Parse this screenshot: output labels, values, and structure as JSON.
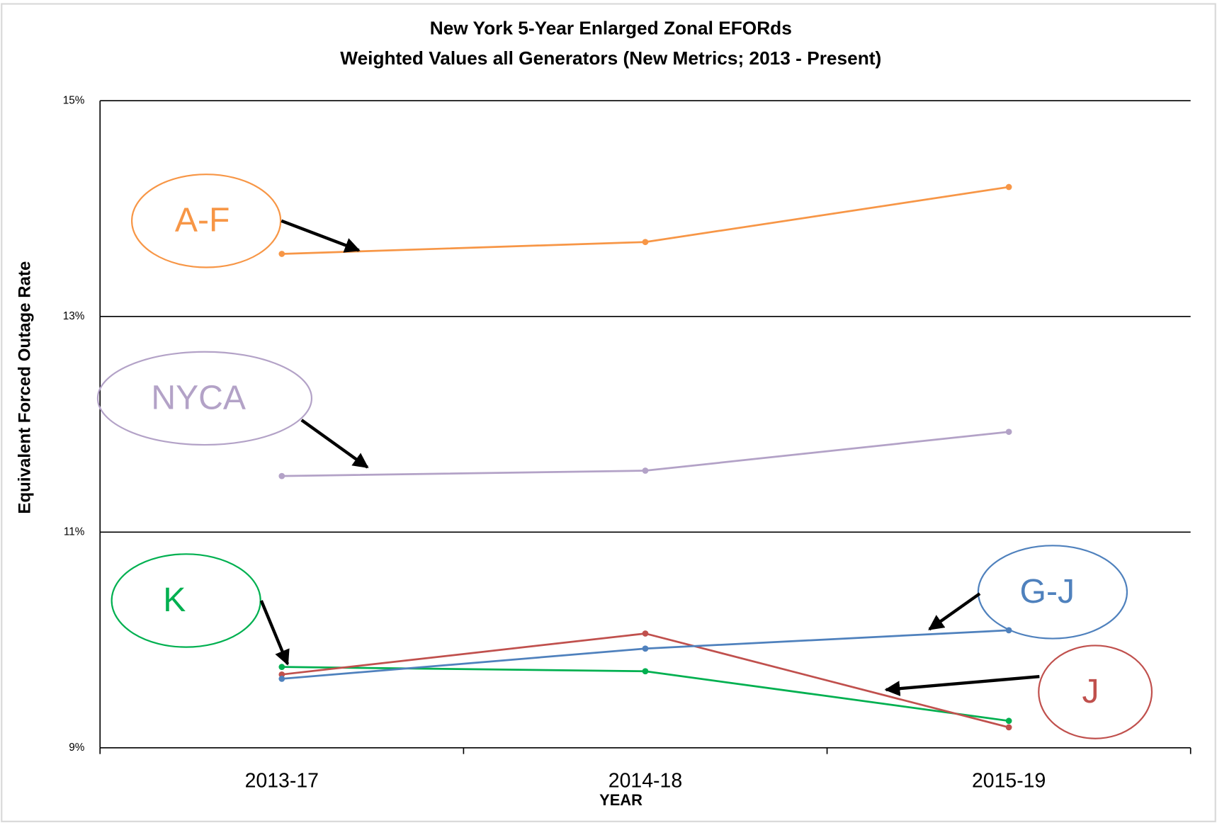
{
  "chart_data": {
    "type": "line",
    "title": "New York 5-Year Enlarged Zonal EFORds",
    "subtitle": "Weighted Values all Generators (New Metrics; 2013 - Present)",
    "y_label": "Equivalent Forced Outage Rate",
    "x_label": "YEAR",
    "categories": [
      "2013-17",
      "2014-18",
      "2015-19"
    ],
    "series": [
      {
        "name": "A-F",
        "color": "#f79646",
        "values": [
          13.58,
          13.69,
          14.2
        ]
      },
      {
        "name": "NYCA",
        "color": "#b3a2c7",
        "values": [
          11.52,
          11.57,
          11.93
        ]
      },
      {
        "name": "K",
        "color": "#00b050",
        "values": [
          9.75,
          9.71,
          9.25
        ]
      },
      {
        "name": "J",
        "color": "#c0504d",
        "values": [
          9.68,
          10.06,
          9.19
        ]
      },
      {
        "name": "G-J",
        "color": "#4f81bd",
        "values": [
          9.64,
          9.92,
          10.09
        ]
      }
    ],
    "ylim": [
      9,
      15
    ],
    "yticks": [
      {
        "value": 9,
        "label": "9%"
      },
      {
        "value": 11,
        "label": "11%"
      },
      {
        "value": 13,
        "label": "13%"
      },
      {
        "value": 15,
        "label": "15%"
      }
    ],
    "grid": true
  }
}
